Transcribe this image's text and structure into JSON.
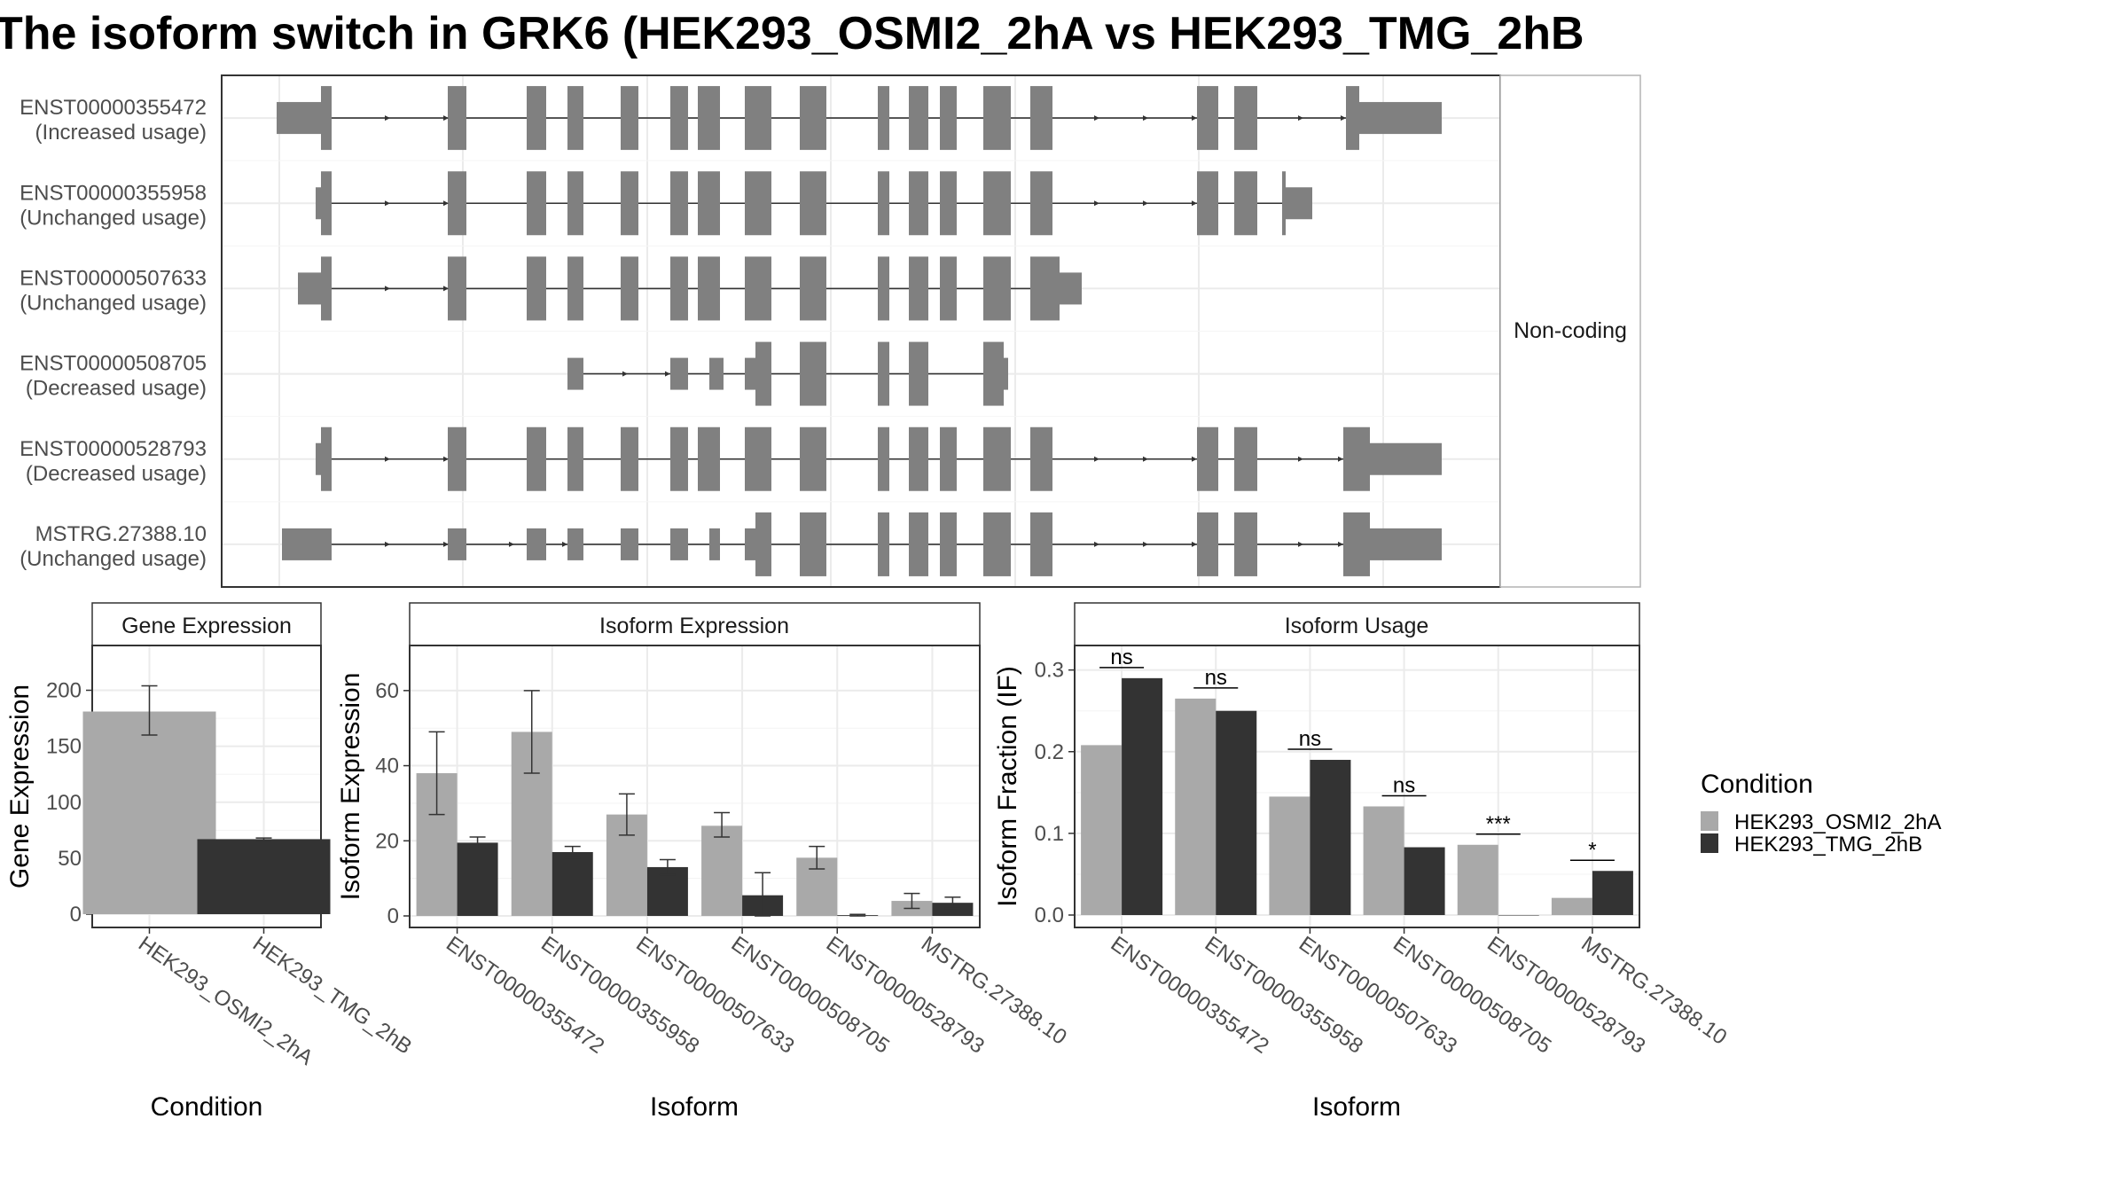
{
  "title": "The isoform switch in GRK6 (HEK293_OSMI2_2hA vs HEK293_TMG_2hB",
  "colors": {
    "cond1": "#a9a9a9",
    "cond2": "#333333",
    "exon": "#808080",
    "grid": "#ebebeb",
    "panel_border": "#333333"
  },
  "chart_data": [
    {
      "type": "gene-structure",
      "panel_label": "Non-coding",
      "isoforms": [
        {
          "id": "ENST00000355472",
          "status": "(Increased usage)"
        },
        {
          "id": "ENST00000355958",
          "status": "(Unchanged usage)"
        },
        {
          "id": "ENST00000507633",
          "status": "(Unchanged usage)"
        },
        {
          "id": "ENST00000508705",
          "status": "(Decreased usage)"
        },
        {
          "id": "ENST00000528793",
          "status": "(Decreased usage)"
        },
        {
          "id": "MSTRG.27388.10",
          "status": "(Unchanged usage)"
        }
      ]
    },
    {
      "type": "bar",
      "title": "Gene Expression",
      "xlabel": "Condition",
      "ylabel": "Gene Expression",
      "ylim": [
        0,
        240
      ],
      "yticks": [
        0,
        50,
        100,
        150,
        200
      ],
      "categories": [
        "HEK293_OSMI2_2hA",
        "HEK293_TMG_2hB"
      ],
      "values": [
        181,
        67
      ],
      "error": [
        [
          160,
          204
        ],
        [
          66,
          68
        ]
      ]
    },
    {
      "type": "bar",
      "title": "Isoform Expression",
      "xlabel": "Isoform",
      "ylabel": "Isoform Expression",
      "ylim": [
        0,
        72
      ],
      "yticks": [
        0,
        20,
        40,
        60
      ],
      "categories": [
        "ENST00000355472",
        "ENST00000355958",
        "ENST00000507633",
        "ENST00000508705",
        "ENST00000528793",
        "MSTRG.27388.10"
      ],
      "series": [
        {
          "name": "HEK293_OSMI2_2hA",
          "values": [
            38,
            49,
            27,
            24,
            15.5,
            4
          ],
          "error": [
            [
              27,
              49
            ],
            [
              38,
              60
            ],
            [
              21.5,
              32.5
            ],
            [
              21,
              27.5
            ],
            [
              12.5,
              18.5
            ],
            [
              2,
              6
            ]
          ]
        },
        {
          "name": "HEK293_TMG_2hB",
          "values": [
            19.5,
            17,
            13,
            5.5,
            0.2,
            3.5
          ],
          "error": [
            [
              18,
              21
            ],
            [
              15.5,
              18.5
            ],
            [
              11,
              15
            ],
            [
              0,
              11.5
            ],
            [
              0,
              0.4
            ],
            [
              2,
              5
            ]
          ]
        }
      ]
    },
    {
      "type": "bar",
      "title": "Isoform Usage",
      "xlabel": "Isoform",
      "ylabel": "Isoform Fraction (IF)",
      "ylim": [
        0,
        0.33
      ],
      "yticks": [
        0.0,
        0.1,
        0.2,
        0.3
      ],
      "ytick_labels": [
        "0.0",
        "0.1",
        "0.2",
        "0.3"
      ],
      "categories": [
        "ENST00000355472",
        "ENST00000355958",
        "ENST00000507633",
        "ENST00000508705",
        "ENST00000528793",
        "MSTRG.27388.10"
      ],
      "series": [
        {
          "name": "HEK293_OSMI2_2hA",
          "values": [
            0.208,
            0.265,
            0.145,
            0.133,
            0.086,
            0.021
          ]
        },
        {
          "name": "HEK293_TMG_2hB",
          "values": [
            0.29,
            0.25,
            0.19,
            0.083,
            0.0,
            0.054
          ]
        }
      ],
      "significance": [
        "ns",
        "ns",
        "ns",
        "ns",
        "***",
        "*"
      ]
    }
  ],
  "legend": {
    "title": "Condition",
    "entries": [
      "HEK293_OSMI2_2hA",
      "HEK293_TMG_2hB"
    ]
  }
}
